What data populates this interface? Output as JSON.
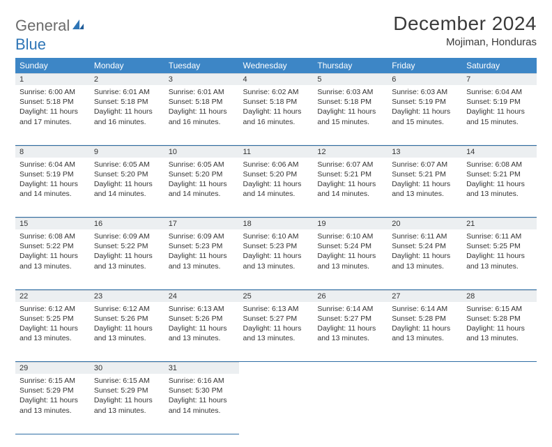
{
  "brand": {
    "word1": "General",
    "word2": "Blue"
  },
  "title": "December 2024",
  "location": "Mojiman, Honduras",
  "colors": {
    "header_bg": "#3d86c6",
    "header_text": "#ffffff",
    "daynum_bg": "#eceff1",
    "text": "#333333",
    "rule": "#2e6da4",
    "logo_gray": "#6b6b6b",
    "logo_blue": "#2e75b6"
  },
  "dayNames": [
    "Sunday",
    "Monday",
    "Tuesday",
    "Wednesday",
    "Thursday",
    "Friday",
    "Saturday"
  ],
  "weeks": [
    [
      {
        "n": "1",
        "sunrise": "6:00 AM",
        "sunset": "5:18 PM",
        "daylight": "11 hours and 17 minutes."
      },
      {
        "n": "2",
        "sunrise": "6:01 AM",
        "sunset": "5:18 PM",
        "daylight": "11 hours and 16 minutes."
      },
      {
        "n": "3",
        "sunrise": "6:01 AM",
        "sunset": "5:18 PM",
        "daylight": "11 hours and 16 minutes."
      },
      {
        "n": "4",
        "sunrise": "6:02 AM",
        "sunset": "5:18 PM",
        "daylight": "11 hours and 16 minutes."
      },
      {
        "n": "5",
        "sunrise": "6:03 AM",
        "sunset": "5:18 PM",
        "daylight": "11 hours and 15 minutes."
      },
      {
        "n": "6",
        "sunrise": "6:03 AM",
        "sunset": "5:19 PM",
        "daylight": "11 hours and 15 minutes."
      },
      {
        "n": "7",
        "sunrise": "6:04 AM",
        "sunset": "5:19 PM",
        "daylight": "11 hours and 15 minutes."
      }
    ],
    [
      {
        "n": "8",
        "sunrise": "6:04 AM",
        "sunset": "5:19 PM",
        "daylight": "11 hours and 14 minutes."
      },
      {
        "n": "9",
        "sunrise": "6:05 AM",
        "sunset": "5:20 PM",
        "daylight": "11 hours and 14 minutes."
      },
      {
        "n": "10",
        "sunrise": "6:05 AM",
        "sunset": "5:20 PM",
        "daylight": "11 hours and 14 minutes."
      },
      {
        "n": "11",
        "sunrise": "6:06 AM",
        "sunset": "5:20 PM",
        "daylight": "11 hours and 14 minutes."
      },
      {
        "n": "12",
        "sunrise": "6:07 AM",
        "sunset": "5:21 PM",
        "daylight": "11 hours and 14 minutes."
      },
      {
        "n": "13",
        "sunrise": "6:07 AM",
        "sunset": "5:21 PM",
        "daylight": "11 hours and 13 minutes."
      },
      {
        "n": "14",
        "sunrise": "6:08 AM",
        "sunset": "5:21 PM",
        "daylight": "11 hours and 13 minutes."
      }
    ],
    [
      {
        "n": "15",
        "sunrise": "6:08 AM",
        "sunset": "5:22 PM",
        "daylight": "11 hours and 13 minutes."
      },
      {
        "n": "16",
        "sunrise": "6:09 AM",
        "sunset": "5:22 PM",
        "daylight": "11 hours and 13 minutes."
      },
      {
        "n": "17",
        "sunrise": "6:09 AM",
        "sunset": "5:23 PM",
        "daylight": "11 hours and 13 minutes."
      },
      {
        "n": "18",
        "sunrise": "6:10 AM",
        "sunset": "5:23 PM",
        "daylight": "11 hours and 13 minutes."
      },
      {
        "n": "19",
        "sunrise": "6:10 AM",
        "sunset": "5:24 PM",
        "daylight": "11 hours and 13 minutes."
      },
      {
        "n": "20",
        "sunrise": "6:11 AM",
        "sunset": "5:24 PM",
        "daylight": "11 hours and 13 minutes."
      },
      {
        "n": "21",
        "sunrise": "6:11 AM",
        "sunset": "5:25 PM",
        "daylight": "11 hours and 13 minutes."
      }
    ],
    [
      {
        "n": "22",
        "sunrise": "6:12 AM",
        "sunset": "5:25 PM",
        "daylight": "11 hours and 13 minutes."
      },
      {
        "n": "23",
        "sunrise": "6:12 AM",
        "sunset": "5:26 PM",
        "daylight": "11 hours and 13 minutes."
      },
      {
        "n": "24",
        "sunrise": "6:13 AM",
        "sunset": "5:26 PM",
        "daylight": "11 hours and 13 minutes."
      },
      {
        "n": "25",
        "sunrise": "6:13 AM",
        "sunset": "5:27 PM",
        "daylight": "11 hours and 13 minutes."
      },
      {
        "n": "26",
        "sunrise": "6:14 AM",
        "sunset": "5:27 PM",
        "daylight": "11 hours and 13 minutes."
      },
      {
        "n": "27",
        "sunrise": "6:14 AM",
        "sunset": "5:28 PM",
        "daylight": "11 hours and 13 minutes."
      },
      {
        "n": "28",
        "sunrise": "6:15 AM",
        "sunset": "5:28 PM",
        "daylight": "11 hours and 13 minutes."
      }
    ],
    [
      {
        "n": "29",
        "sunrise": "6:15 AM",
        "sunset": "5:29 PM",
        "daylight": "11 hours and 13 minutes."
      },
      {
        "n": "30",
        "sunrise": "6:15 AM",
        "sunset": "5:29 PM",
        "daylight": "11 hours and 13 minutes."
      },
      {
        "n": "31",
        "sunrise": "6:16 AM",
        "sunset": "5:30 PM",
        "daylight": "11 hours and 14 minutes."
      },
      null,
      null,
      null,
      null
    ]
  ],
  "labels": {
    "sunrise": "Sunrise:",
    "sunset": "Sunset:",
    "daylight": "Daylight:"
  }
}
